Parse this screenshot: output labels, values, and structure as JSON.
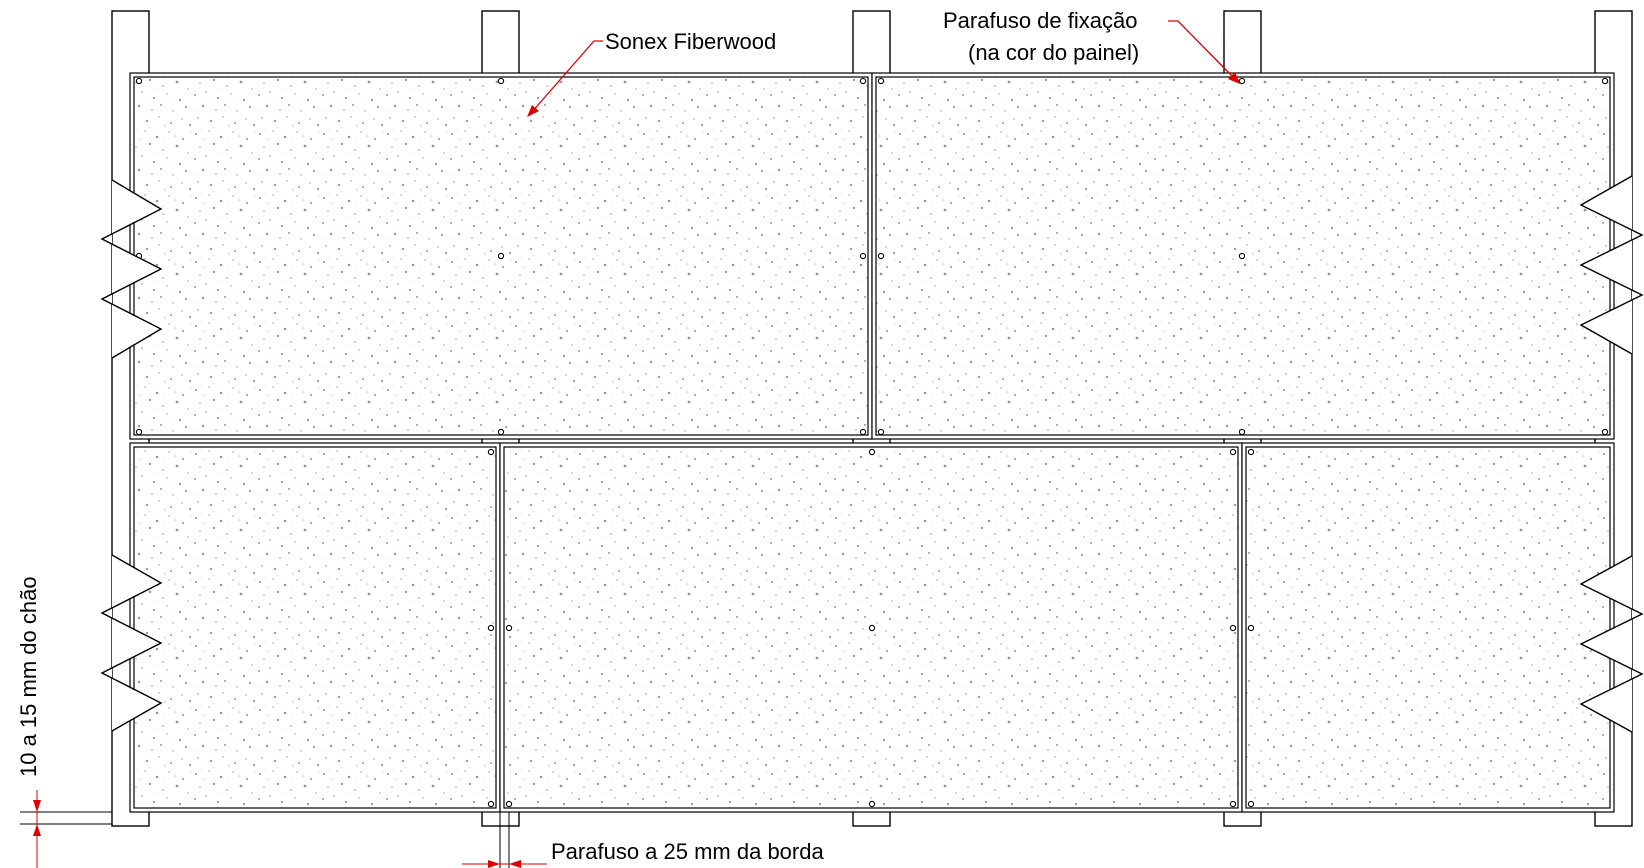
{
  "labels": {
    "panel_material": "Sonex Fiberwood",
    "fixing_screw_line1": "Parafuso de fixação",
    "fixing_screw_line2": "(na cor do painel)",
    "floor_gap": "10 a 15 mm do chão",
    "edge_screw": "Parafuso a 25 mm da borda"
  },
  "colors": {
    "line": "#000000",
    "leader": "#e00000",
    "texture": "#9a9a9a",
    "background": "#ffffff"
  }
}
